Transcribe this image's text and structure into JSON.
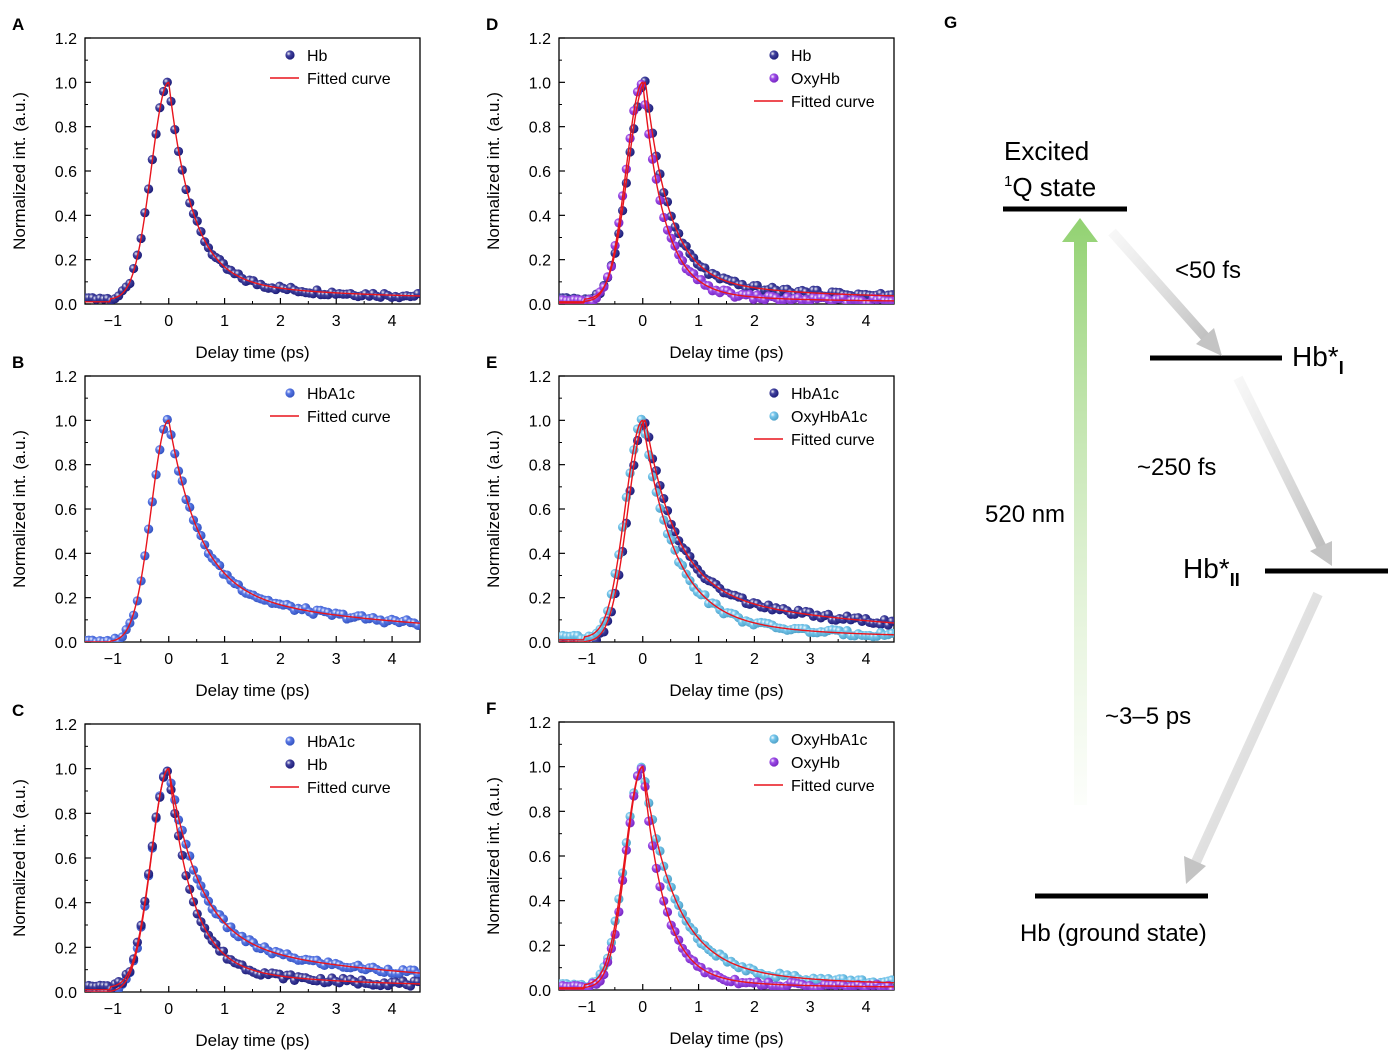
{
  "panels": [
    {
      "letter": "A"
    },
    {
      "letter": "B"
    },
    {
      "letter": "C"
    },
    {
      "letter": "D"
    },
    {
      "letter": "E"
    },
    {
      "letter": "F"
    }
  ],
  "colors": {
    "hb": "#1f1f8c",
    "oxyhb": "#8a2be2",
    "hba1c": "#3a5fe0",
    "oxyhba1c": "#5bbbe8",
    "fit": "#e8141c",
    "axis": "#000000"
  },
  "chart_data": [
    {
      "panel": "A",
      "type": "scatter",
      "xlabel": "Delay time (ps)",
      "ylabel": "Normalized int. (a.u.)",
      "xlim": [
        -1.5,
        4.5
      ],
      "ylim": [
        0,
        1.2
      ],
      "xticks": [
        -1,
        0,
        1,
        2,
        3,
        4
      ],
      "yticks": [
        0.0,
        0.2,
        0.4,
        0.6,
        0.8,
        1.0,
        1.2
      ],
      "xtick_labels": [
        "−1",
        "0",
        "1",
        "2",
        "3",
        "4"
      ],
      "ytick_labels": [
        "0.0",
        "0.2",
        "0.4",
        "0.6",
        "0.8",
        "1.0",
        "1.2"
      ],
      "legend_position": "top-right",
      "series": [
        {
          "name": "Hb",
          "color_key": "hb",
          "peak_shift": 0.0,
          "rise": 0.42,
          "decay_fast": 0.42,
          "amp_fast": 0.9,
          "decay_slow": 2.5,
          "amp_slow": 0.1,
          "baseline": 0.02
        }
      ],
      "fit_label": "Fitted curve"
    },
    {
      "panel": "B",
      "type": "scatter",
      "xlabel": "Delay time (ps)",
      "ylabel": "Normalized int. (a.u.)",
      "xlim": [
        -1.5,
        4.5
      ],
      "ylim": [
        0,
        1.2
      ],
      "xticks": [
        -1,
        0,
        1,
        2,
        3,
        4
      ],
      "yticks": [
        0.0,
        0.2,
        0.4,
        0.6,
        0.8,
        1.0,
        1.2
      ],
      "xtick_labels": [
        "−1",
        "0",
        "1",
        "2",
        "3",
        "4"
      ],
      "ytick_labels": [
        "0.0",
        "0.2",
        "0.4",
        "0.6",
        "0.8",
        "1.0",
        "1.2"
      ],
      "legend_position": "top-right",
      "series": [
        {
          "name": "HbA1c",
          "color_key": "hba1c",
          "peak_shift": 0.0,
          "rise": 0.42,
          "decay_fast": 0.55,
          "amp_fast": 0.77,
          "decay_slow": 4.5,
          "amp_slow": 0.23,
          "baseline": 0.0
        }
      ],
      "fit_label": "Fitted curve"
    },
    {
      "panel": "C",
      "type": "scatter",
      "xlabel": "Delay time (ps)",
      "ylabel": "Normalized int. (a.u.)",
      "xlim": [
        -1.5,
        4.5
      ],
      "ylim": [
        0,
        1.2
      ],
      "xticks": [
        -1,
        0,
        1,
        2,
        3,
        4
      ],
      "yticks": [
        0.0,
        0.2,
        0.4,
        0.6,
        0.8,
        1.0,
        1.2
      ],
      "xtick_labels": [
        "−1",
        "0",
        "1",
        "2",
        "3",
        "4"
      ],
      "ytick_labels": [
        "0.0",
        "0.2",
        "0.4",
        "0.6",
        "0.8",
        "1.0",
        "1.2"
      ],
      "legend_position": "top-right",
      "series": [
        {
          "name": "HbA1c",
          "color_key": "hba1c",
          "peak_shift": 0.0,
          "rise": 0.42,
          "decay_fast": 0.55,
          "amp_fast": 0.77,
          "decay_slow": 4.5,
          "amp_slow": 0.23,
          "baseline": 0.0
        },
        {
          "name": "Hb",
          "color_key": "hb",
          "peak_shift": 0.0,
          "rise": 0.42,
          "decay_fast": 0.42,
          "amp_fast": 0.9,
          "decay_slow": 2.5,
          "amp_slow": 0.1,
          "baseline": 0.02
        }
      ],
      "fit_label": "Fitted curve"
    },
    {
      "panel": "D",
      "type": "scatter",
      "xlabel": "Delay time (ps)",
      "ylabel": "Normalized int. (a.u.)",
      "xlim": [
        -1.5,
        4.5
      ],
      "ylim": [
        0,
        1.2
      ],
      "xticks": [
        -1,
        0,
        1,
        2,
        3,
        4
      ],
      "yticks": [
        0.0,
        0.2,
        0.4,
        0.6,
        0.8,
        1.0,
        1.2
      ],
      "xtick_labels": [
        "−1",
        "0",
        "1",
        "2",
        "3",
        "4"
      ],
      "ytick_labels": [
        "0.0",
        "0.2",
        "0.4",
        "0.6",
        "0.8",
        "1.0",
        "1.2"
      ],
      "legend_position": "top-right",
      "series": [
        {
          "name": "Hb",
          "color_key": "hb",
          "peak_shift": 0.05,
          "rise": 0.42,
          "decay_fast": 0.42,
          "amp_fast": 0.9,
          "decay_slow": 2.5,
          "amp_slow": 0.1,
          "baseline": 0.02
        },
        {
          "name": "OxyHb",
          "color_key": "oxyhb",
          "peak_shift": 0.0,
          "rise": 0.4,
          "decay_fast": 0.38,
          "amp_fast": 0.95,
          "decay_slow": 1.8,
          "amp_slow": 0.05,
          "baseline": 0.01
        }
      ],
      "fit_label": "Fitted curve"
    },
    {
      "panel": "E",
      "type": "scatter",
      "xlabel": "Delay time (ps)",
      "ylabel": "Normalized int. (a.u.)",
      "xlim": [
        -1.5,
        4.5
      ],
      "ylim": [
        0,
        1.2
      ],
      "xticks": [
        -1,
        0,
        1,
        2,
        3,
        4
      ],
      "yticks": [
        0.0,
        0.2,
        0.4,
        0.6,
        0.8,
        1.0,
        1.2
      ],
      "xtick_labels": [
        "−1",
        "0",
        "1",
        "2",
        "3",
        "4"
      ],
      "ytick_labels": [
        "0.0",
        "0.2",
        "0.4",
        "0.6",
        "0.8",
        "1.0",
        "1.2"
      ],
      "legend_position": "top-right",
      "series": [
        {
          "name": "HbA1c",
          "color_key": "hb",
          "peak_shift": 0.05,
          "rise": 0.42,
          "decay_fast": 0.55,
          "amp_fast": 0.77,
          "decay_slow": 4.5,
          "amp_slow": 0.23,
          "baseline": 0.0
        },
        {
          "name": "OxyHbA1c",
          "color_key": "oxyhba1c",
          "peak_shift": 0.0,
          "rise": 0.42,
          "decay_fast": 0.55,
          "amp_fast": 0.88,
          "decay_slow": 2.0,
          "amp_slow": 0.12,
          "baseline": 0.02
        }
      ],
      "fit_label": "Fitted curve"
    },
    {
      "panel": "F",
      "type": "scatter",
      "xlabel": "Delay time (ps)",
      "ylabel": "Normalized int. (a.u.)",
      "xlim": [
        -1.5,
        4.5
      ],
      "ylim": [
        0,
        1.2
      ],
      "xticks": [
        -1,
        0,
        1,
        2,
        3,
        4
      ],
      "yticks": [
        0.0,
        0.2,
        0.4,
        0.6,
        0.8,
        1.0,
        1.2
      ],
      "xtick_labels": [
        "−1",
        "0",
        "1",
        "2",
        "3",
        "4"
      ],
      "ytick_labels": [
        "0.0",
        "0.2",
        "0.4",
        "0.6",
        "0.8",
        "1.0",
        "1.2"
      ],
      "legend_position": "top-right",
      "series": [
        {
          "name": "OxyHbA1c",
          "color_key": "oxyhba1c",
          "peak_shift": 0.0,
          "rise": 0.42,
          "decay_fast": 0.55,
          "amp_fast": 0.88,
          "decay_slow": 2.0,
          "amp_slow": 0.12,
          "baseline": 0.02
        },
        {
          "name": "OxyHb",
          "color_key": "oxyhb",
          "peak_shift": 0.0,
          "rise": 0.4,
          "decay_fast": 0.38,
          "amp_fast": 0.95,
          "decay_slow": 1.8,
          "amp_slow": 0.05,
          "baseline": 0.01
        }
      ],
      "fit_label": "Fitted curve"
    }
  ],
  "diagram": {
    "letter": "G",
    "excited_line1": "Excited",
    "excited_sup": "1",
    "excited_line2": "Q state",
    "hb1_label": "Hb*",
    "hb1_sub": "I",
    "hb2_label": "Hb*",
    "hb2_sub": "II",
    "ground_label": "Hb (ground state)",
    "pump_label": "520 nm",
    "t1_label": "<50 fs",
    "t2_label": "~250 fs",
    "t3_label": "~3–5 ps"
  }
}
